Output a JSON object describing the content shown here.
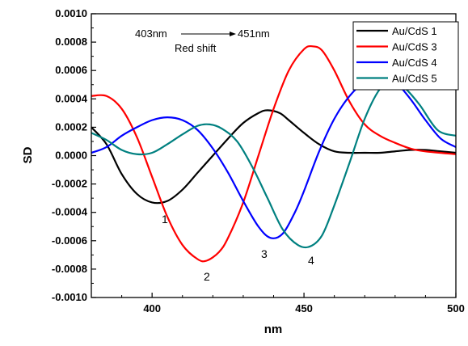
{
  "chart_data": {
    "type": "line",
    "xlabel": "nm",
    "ylabel": "SD",
    "xlim": [
      380,
      500
    ],
    "ylim": [
      -0.001,
      0.001
    ],
    "x_ticks": [
      "400",
      "450",
      "500"
    ],
    "y_ticks": [
      "-0.0010",
      "-0.0008",
      "-0.0006",
      "-0.0004",
      "-0.0002",
      "0.0000",
      "0.0002",
      "0.0004",
      "0.0006",
      "0.0008",
      "0.0010"
    ],
    "legend_position": "top-right",
    "series": [
      {
        "name": "Au/CdS 1",
        "color": "#000000",
        "points": [
          [
            380,
            0.0002
          ],
          [
            385,
            8e-05
          ],
          [
            390,
            -0.00013
          ],
          [
            395,
            -0.00027
          ],
          [
            400,
            -0.00033
          ],
          [
            405,
            -0.00032
          ],
          [
            410,
            -0.00024
          ],
          [
            415,
            -0.00012
          ],
          [
            420,
            0.0
          ],
          [
            425,
            0.00012
          ],
          [
            430,
            0.00023
          ],
          [
            435,
            0.0003
          ],
          [
            438,
            0.00032
          ],
          [
            442,
            0.0003
          ],
          [
            445,
            0.00025
          ],
          [
            450,
            0.00016
          ],
          [
            455,
            8e-05
          ],
          [
            460,
            3e-05
          ],
          [
            465,
            2e-05
          ],
          [
            470,
            2e-05
          ],
          [
            475,
            2e-05
          ],
          [
            480,
            3e-05
          ],
          [
            485,
            4e-05
          ],
          [
            490,
            4e-05
          ],
          [
            495,
            3e-05
          ],
          [
            500,
            2e-05
          ]
        ]
      },
      {
        "name": "Au/CdS 3",
        "color": "#ff0000",
        "points": [
          [
            380,
            0.00042
          ],
          [
            385,
            0.00042
          ],
          [
            390,
            0.00033
          ],
          [
            395,
            0.00013
          ],
          [
            400,
            -0.00015
          ],
          [
            405,
            -0.00043
          ],
          [
            410,
            -0.00063
          ],
          [
            415,
            -0.00073
          ],
          [
            418,
            -0.00074
          ],
          [
            422,
            -0.00068
          ],
          [
            425,
            -0.00058
          ],
          [
            430,
            -0.00033
          ],
          [
            435,
            0.0
          ],
          [
            440,
            0.00033
          ],
          [
            445,
            0.0006
          ],
          [
            450,
            0.00075
          ],
          [
            453,
            0.00077
          ],
          [
            456,
            0.00074
          ],
          [
            460,
            0.0006
          ],
          [
            465,
            0.00038
          ],
          [
            470,
            0.00022
          ],
          [
            475,
            0.00014
          ],
          [
            480,
            9e-05
          ],
          [
            485,
            5e-05
          ],
          [
            490,
            3e-05
          ],
          [
            500,
            1e-05
          ]
        ]
      },
      {
        "name": "Au/CdS 4",
        "color": "#0000ff",
        "points": [
          [
            380,
            2e-05
          ],
          [
            385,
            6e-05
          ],
          [
            390,
            0.00014
          ],
          [
            395,
            0.0002
          ],
          [
            400,
            0.00025
          ],
          [
            405,
            0.00027
          ],
          [
            410,
            0.00025
          ],
          [
            415,
            0.00018
          ],
          [
            420,
            5e-05
          ],
          [
            425,
            -0.00012
          ],
          [
            430,
            -0.00032
          ],
          [
            435,
            -0.0005
          ],
          [
            439,
            -0.00058
          ],
          [
            443,
            -0.00055
          ],
          [
            447,
            -0.0004
          ],
          [
            450,
            -0.00025
          ],
          [
            455,
            3e-05
          ],
          [
            460,
            0.00026
          ],
          [
            465,
            0.00042
          ],
          [
            470,
            0.00052
          ],
          [
            475,
            0.00056
          ],
          [
            480,
            0.00052
          ],
          [
            485,
            0.0004
          ],
          [
            490,
            0.00025
          ],
          [
            495,
            0.00012
          ],
          [
            500,
            6e-05
          ]
        ]
      },
      {
        "name": "Au/CdS 5",
        "color": "#008080",
        "points": [
          [
            380,
            0.00016
          ],
          [
            385,
            0.00011
          ],
          [
            390,
            4e-05
          ],
          [
            395,
            1e-05
          ],
          [
            400,
            2e-05
          ],
          [
            405,
            8e-05
          ],
          [
            410,
            0.00015
          ],
          [
            415,
            0.00021
          ],
          [
            419,
            0.00022
          ],
          [
            423,
            0.00019
          ],
          [
            428,
            0.0001
          ],
          [
            433,
            -8e-05
          ],
          [
            438,
            -0.0003
          ],
          [
            443,
            -0.00052
          ],
          [
            448,
            -0.00063
          ],
          [
            452,
            -0.00064
          ],
          [
            456,
            -0.00056
          ],
          [
            460,
            -0.00035
          ],
          [
            465,
            -5e-05
          ],
          [
            470,
            0.00026
          ],
          [
            475,
            0.00047
          ],
          [
            479,
            0.00052
          ],
          [
            483,
            0.00048
          ],
          [
            488,
            0.00036
          ],
          [
            494,
            0.00018
          ],
          [
            500,
            0.00014
          ]
        ]
      }
    ],
    "annotations": {
      "start_wavelength": "403nm",
      "end_wavelength": "451nm",
      "shift_label": "Red shift",
      "peak_labels": [
        "1",
        "2",
        "3",
        "4"
      ]
    }
  }
}
